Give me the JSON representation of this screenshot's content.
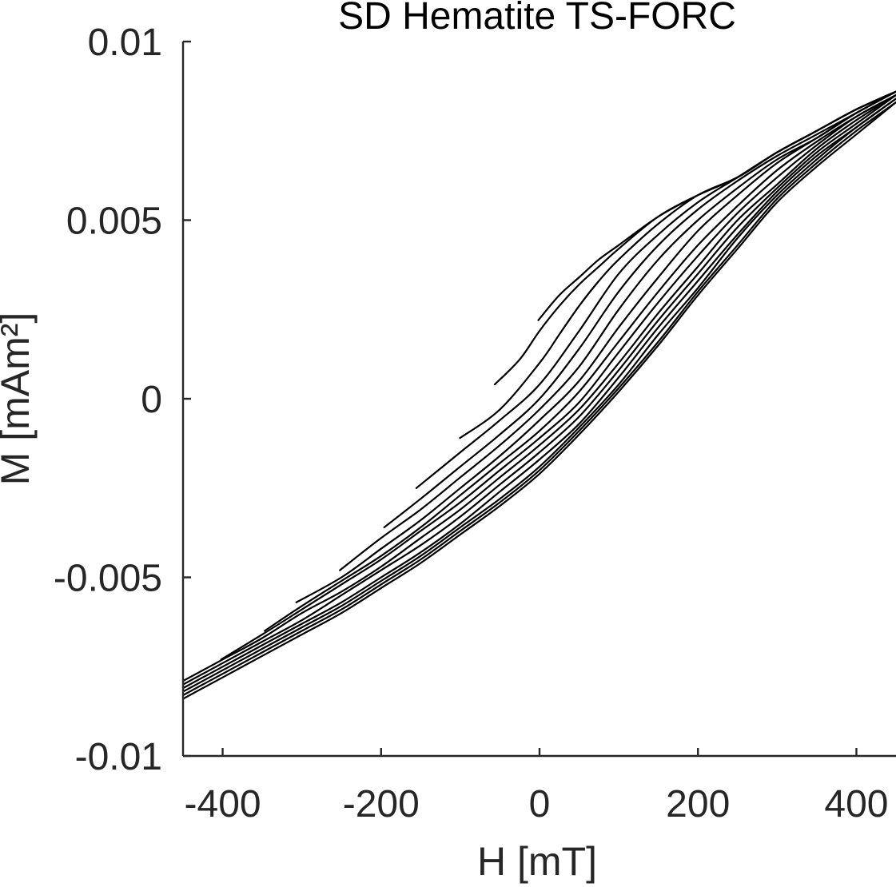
{
  "chart_data": {
    "type": "line",
    "title": "SD Hematite TS-FORC",
    "xlabel": "H [mT]",
    "ylabel": "M [mAm²]",
    "xlim": [
      -450,
      450
    ],
    "ylim": [
      -0.01,
      0.01
    ],
    "xticks": [
      -400,
      -200,
      0,
      200,
      400
    ],
    "xtick_labels": [
      "-400",
      "-200",
      "0",
      "200",
      "400"
    ],
    "yticks": [
      -0.01,
      -0.005,
      0,
      0.005,
      0.01
    ],
    "ytick_labels": [
      "-0.01",
      "-0.005",
      "0",
      "0.005",
      "0.01"
    ],
    "grid": false,
    "legend": "none",
    "line_color": "#000000",
    "series": [
      {
        "x": [
          -1.5,
          25,
          50,
          75,
          100,
          150,
          200,
          250,
          300,
          350,
          400,
          450
        ],
        "y": [
          0.0022,
          0.0029,
          0.0034,
          0.0039,
          0.0043,
          0.0051,
          0.0057,
          0.0062,
          0.0069,
          0.0075,
          0.0081,
          0.0086
        ]
      },
      {
        "x": [
          -56.5,
          -25,
          0,
          25,
          50,
          75,
          100,
          150,
          200,
          250,
          300,
          350,
          400,
          450
        ],
        "y": [
          0.0004,
          0.0011,
          0.0019,
          0.0026,
          0.0032,
          0.0037,
          0.0042,
          0.0051,
          0.0057,
          0.0062,
          0.0069,
          0.0075,
          0.0081,
          0.0086
        ]
      },
      {
        "x": [
          -100.5,
          -50,
          0,
          25,
          50,
          75,
          100,
          150,
          200,
          250,
          300,
          350,
          400,
          450
        ],
        "y": [
          -0.0011,
          -0.0003,
          0.001,
          0.0018,
          0.0026,
          0.0033,
          0.0039,
          0.0049,
          0.0057,
          0.0062,
          0.0069,
          0.0075,
          0.0081,
          0.0086
        ]
      },
      {
        "x": [
          -155.5,
          -100,
          -50,
          0,
          50,
          100,
          150,
          200,
          250,
          300,
          350,
          400,
          450
        ],
        "y": [
          -0.0025,
          -0.0015,
          -0.0006,
          0.0004,
          0.0019,
          0.0035,
          0.0046,
          0.0055,
          0.0062,
          0.0069,
          0.0075,
          0.0081,
          0.0086
        ]
      },
      {
        "x": [
          -196,
          -150,
          -100,
          -50,
          0,
          50,
          100,
          150,
          200,
          250,
          300,
          350,
          400,
          450
        ],
        "y": [
          -0.0036,
          -0.0028,
          -0.0019,
          -0.001,
          0,
          0.0014,
          0.003,
          0.0043,
          0.0053,
          0.0061,
          0.0068,
          0.0074,
          0.008,
          0.0086
        ]
      },
      {
        "x": [
          -252,
          -200,
          -150,
          -100,
          -50,
          0,
          50,
          100,
          150,
          200,
          250,
          300,
          350,
          400,
          450
        ],
        "y": [
          -0.0048,
          -0.0039,
          -0.0031,
          -0.0022,
          -0.0013,
          -0.0003,
          0.0009,
          0.0025,
          0.0039,
          0.005,
          0.0059,
          0.0067,
          0.0073,
          0.008,
          0.0086
        ]
      },
      {
        "x": [
          -307,
          -250,
          -200,
          -150,
          -100,
          -50,
          0,
          50,
          100,
          150,
          200,
          250,
          300,
          350,
          400,
          450
        ],
        "y": [
          -0.0057,
          -0.005,
          -0.0042,
          -0.0034,
          -0.0025,
          -0.0016,
          -0.0006,
          0.0005,
          0.002,
          0.0034,
          0.0047,
          0.0057,
          0.0066,
          0.0073,
          0.008,
          0.0086
        ]
      },
      {
        "x": [
          -347,
          -300,
          -250,
          -200,
          -150,
          -100,
          -50,
          0,
          50,
          100,
          150,
          200,
          250,
          300,
          350,
          400,
          450
        ],
        "y": [
          -0.0065,
          -0.0058,
          -0.0051,
          -0.0044,
          -0.0036,
          -0.0027,
          -0.0018,
          -0.0009,
          0.0002,
          0.0016,
          0.003,
          0.0043,
          0.0054,
          0.0064,
          0.0072,
          0.0079,
          0.0085
        ]
      },
      {
        "x": [
          -402,
          -350,
          -300,
          -250,
          -200,
          -150,
          -100,
          -50,
          0,
          50,
          100,
          150,
          200,
          250,
          300,
          350,
          400,
          450
        ],
        "y": [
          -0.0073,
          -0.0066,
          -0.0059,
          -0.0052,
          -0.0045,
          -0.0037,
          -0.0029,
          -0.002,
          -0.0011,
          -0.0001,
          0.0013,
          0.0027,
          0.004,
          0.0052,
          0.0062,
          0.0071,
          0.0079,
          0.0085
        ]
      },
      {
        "x": [
          -450,
          -400,
          -350,
          -300,
          -250,
          -200,
          -150,
          -100,
          -50,
          0,
          50,
          100,
          150,
          200,
          250,
          300,
          350,
          400,
          450
        ],
        "y": [
          -0.0079,
          -0.0073,
          -0.0067,
          -0.006,
          -0.0054,
          -0.0047,
          -0.0039,
          -0.0031,
          -0.0022,
          -0.0013,
          -0.0003,
          0.001,
          0.0024,
          0.0037,
          0.005,
          0.006,
          0.007,
          0.0078,
          0.0085
        ]
      },
      {
        "x": [
          -450,
          -400,
          -350,
          -300,
          -250,
          -200,
          -150,
          -100,
          -50,
          0,
          50,
          100,
          150,
          200,
          250,
          300,
          350,
          400,
          450
        ],
        "y": [
          -0.008,
          -0.0074,
          -0.0068,
          -0.0062,
          -0.0055,
          -0.0048,
          -0.0041,
          -0.0033,
          -0.0024,
          -0.0015,
          -0.0005,
          0.0008,
          0.0022,
          0.0035,
          0.0048,
          0.0059,
          0.0069,
          0.0077,
          0.0085
        ]
      },
      {
        "x": [
          -450,
          -400,
          -350,
          -300,
          -250,
          -200,
          -150,
          -100,
          -50,
          0,
          50,
          100,
          150,
          200,
          250,
          300,
          350,
          400,
          450
        ],
        "y": [
          -0.0081,
          -0.0075,
          -0.0069,
          -0.0063,
          -0.0057,
          -0.005,
          -0.0043,
          -0.0035,
          -0.0026,
          -0.0017,
          -0.0007,
          0.0006,
          0.002,
          0.0033,
          0.0046,
          0.0058,
          0.0068,
          0.0076,
          0.0084
        ]
      },
      {
        "x": [
          -450,
          -400,
          -350,
          -300,
          -250,
          -200,
          -150,
          -100,
          -50,
          0,
          50,
          100,
          150,
          200,
          250,
          300,
          350,
          400,
          450
        ],
        "y": [
          -0.0082,
          -0.0076,
          -0.007,
          -0.0064,
          -0.0058,
          -0.0051,
          -0.0044,
          -0.0036,
          -0.0028,
          -0.0019,
          -0.0008,
          0.0004,
          0.0018,
          0.0031,
          0.0045,
          0.0057,
          0.0067,
          0.0076,
          0.0084
        ]
      },
      {
        "x": [
          -450,
          -400,
          -350,
          -300,
          -250,
          -200,
          -150,
          -100,
          -50,
          0,
          50,
          100,
          150,
          200,
          250,
          300,
          350,
          400,
          450
        ],
        "y": [
          -0.0083,
          -0.0077,
          -0.0071,
          -0.0065,
          -0.0059,
          -0.0052,
          -0.0045,
          -0.0037,
          -0.0029,
          -0.002,
          -0.0009,
          0.0003,
          0.0016,
          0.003,
          0.0043,
          0.0056,
          0.0066,
          0.0075,
          0.0083
        ]
      },
      {
        "x": [
          -450,
          -400,
          -350,
          -300,
          -250,
          -200,
          -150,
          -100,
          -50,
          0,
          50,
          100,
          150,
          200,
          250,
          300,
          350,
          400,
          450
        ],
        "y": [
          -0.0084,
          -0.0078,
          -0.0072,
          -0.0066,
          -0.006,
          -0.0053,
          -0.0046,
          -0.0038,
          -0.003,
          -0.0021,
          -0.001,
          0.0002,
          0.0015,
          0.0029,
          0.0042,
          0.0055,
          0.0065,
          0.0074,
          0.0083
        ]
      }
    ]
  }
}
